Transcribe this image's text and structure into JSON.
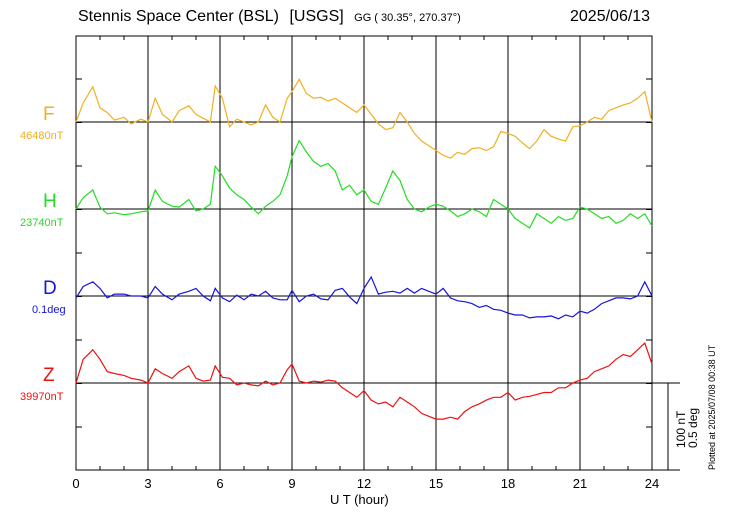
{
  "header": {
    "station": "Stennis Space Center (BSL)",
    "agency": "[USGS]",
    "coords": "GG ( 30.35°, 270.37°)",
    "date": "2025/06/13"
  },
  "scale": {
    "nt": "100 nT",
    "deg": "0.5 deg"
  },
  "plotted_note": "Plotted at 2025/07/08 00:38 UT",
  "chart_data": {
    "type": "line",
    "xlabel": "U T (hour)",
    "xticks": [
      "0",
      "3",
      "6",
      "9",
      "12",
      "15",
      "18",
      "21",
      "24"
    ],
    "xlim": [
      0,
      24
    ],
    "grid": true,
    "series": [
      {
        "name": "F",
        "baseline_label": "46480nT",
        "color": "#f0b020",
        "offset": 0,
        "x": [
          0,
          0.3,
          0.7,
          1.0,
          1.3,
          1.6,
          2.0,
          2.3,
          2.7,
          3.0,
          3.3,
          3.6,
          4.0,
          4.3,
          4.7,
          5.0,
          5.3,
          5.6,
          5.8,
          6.1,
          6.4,
          6.7,
          7.0,
          7.3,
          7.6,
          7.9,
          8.2,
          8.5,
          8.8,
          9.0,
          9.3,
          9.6,
          9.9,
          10.2,
          10.5,
          10.8,
          11.1,
          11.4,
          11.7,
          12.0,
          12.3,
          12.6,
          12.9,
          13.2,
          13.5,
          13.8,
          14.1,
          14.4,
          14.7,
          15.0,
          15.3,
          15.6,
          15.9,
          16.2,
          16.5,
          16.8,
          17.1,
          17.4,
          17.7,
          18.0,
          18.3,
          18.6,
          18.9,
          19.2,
          19.5,
          19.8,
          20.1,
          20.4,
          20.7,
          21.0,
          21.3,
          21.6,
          21.9,
          22.2,
          22.5,
          22.8,
          23.1,
          23.4,
          23.7,
          24.0
        ],
        "y": [
          0,
          20,
          37,
          15,
          10,
          2,
          5,
          -2,
          3,
          0,
          25,
          8,
          0,
          12,
          17,
          8,
          4,
          0,
          38,
          25,
          -5,
          3,
          0,
          -3,
          0,
          18,
          5,
          0,
          25,
          32,
          45,
          30,
          25,
          26,
          22,
          25,
          20,
          15,
          10,
          18,
          8,
          -2,
          -8,
          -6,
          10,
          0,
          -12,
          -20,
          -25,
          -30,
          -35,
          -38,
          -32,
          -34,
          -28,
          -27,
          -30,
          -26,
          -10,
          -12,
          -15,
          -22,
          -28,
          -20,
          -8,
          -15,
          -18,
          -20,
          -5,
          -4,
          0,
          5,
          3,
          12,
          15,
          18,
          20,
          25,
          32,
          0
        ]
      },
      {
        "name": "H",
        "baseline_label": "23740nT",
        "color": "#22dd22",
        "offset": 0,
        "x": [
          0,
          0.3,
          0.7,
          1.0,
          1.3,
          1.6,
          2.0,
          2.3,
          2.7,
          3.0,
          3.3,
          3.6,
          4.0,
          4.3,
          4.7,
          5.0,
          5.3,
          5.6,
          5.8,
          6.1,
          6.4,
          6.7,
          7.0,
          7.3,
          7.6,
          7.9,
          8.2,
          8.5,
          8.8,
          9.0,
          9.3,
          9.6,
          9.9,
          10.2,
          10.5,
          10.8,
          11.1,
          11.4,
          11.7,
          12.0,
          12.3,
          12.6,
          12.9,
          13.2,
          13.5,
          13.8,
          14.1,
          14.4,
          14.7,
          15.0,
          15.3,
          15.6,
          15.9,
          16.2,
          16.5,
          16.8,
          17.1,
          17.4,
          17.7,
          18.0,
          18.3,
          18.6,
          18.9,
          19.2,
          19.5,
          19.8,
          20.1,
          20.4,
          20.7,
          21.0,
          21.3,
          21.6,
          21.9,
          22.2,
          22.5,
          22.8,
          23.1,
          23.4,
          23.7,
          24.0
        ],
        "y": [
          0,
          12,
          20,
          2,
          -5,
          -4,
          -6,
          -5,
          -3,
          -2,
          20,
          8,
          3,
          2,
          10,
          -2,
          0,
          5,
          45,
          35,
          22,
          15,
          10,
          2,
          -5,
          3,
          8,
          15,
          35,
          55,
          72,
          60,
          50,
          45,
          48,
          40,
          20,
          25,
          15,
          20,
          8,
          5,
          22,
          40,
          30,
          10,
          0,
          -3,
          2,
          5,
          3,
          -2,
          -8,
          -5,
          0,
          -3,
          -8,
          10,
          5,
          0,
          -10,
          -15,
          -20,
          -5,
          -10,
          -15,
          -8,
          -12,
          -10,
          2,
          0,
          -5,
          -10,
          -8,
          -15,
          -12,
          -5,
          -10,
          -5,
          -18
        ]
      },
      {
        "name": "D",
        "baseline_label": "0.1deg",
        "color": "#1515dd",
        "offset": 0,
        "x": [
          0,
          0.3,
          0.7,
          1.0,
          1.3,
          1.6,
          2.0,
          2.3,
          2.7,
          3.0,
          3.3,
          3.6,
          4.0,
          4.3,
          4.7,
          5.0,
          5.3,
          5.6,
          5.8,
          6.1,
          6.4,
          6.7,
          7.0,
          7.3,
          7.6,
          7.9,
          8.2,
          8.5,
          8.8,
          9.0,
          9.3,
          9.6,
          9.9,
          10.2,
          10.5,
          10.8,
          11.1,
          11.4,
          11.7,
          12.0,
          12.3,
          12.6,
          12.9,
          13.2,
          13.5,
          13.8,
          14.1,
          14.4,
          14.7,
          15.0,
          15.3,
          15.6,
          15.9,
          16.2,
          16.5,
          16.8,
          17.1,
          17.4,
          17.7,
          18.0,
          18.3,
          18.6,
          18.9,
          19.2,
          19.5,
          19.8,
          20.1,
          20.4,
          20.7,
          21.0,
          21.3,
          21.6,
          21.9,
          22.2,
          22.5,
          22.8,
          23.1,
          23.4,
          23.7,
          24.0
        ],
        "y": [
          -2,
          10,
          15,
          8,
          -2,
          2,
          2,
          0,
          0,
          -2,
          10,
          2,
          -4,
          2,
          5,
          8,
          0,
          -5,
          8,
          -2,
          -6,
          1,
          -4,
          2,
          0,
          5,
          -2,
          -4,
          -4,
          6,
          -6,
          0,
          2,
          -3,
          -4,
          6,
          8,
          -1,
          -8,
          8,
          20,
          2,
          4,
          5,
          3,
          8,
          3,
          8,
          5,
          2,
          8,
          -2,
          -5,
          -6,
          -8,
          -12,
          -10,
          -14,
          -15,
          -18,
          -20,
          -20,
          -23,
          -22,
          -22,
          -21,
          -24,
          -20,
          -22,
          -16,
          -18,
          -14,
          -8,
          -5,
          -2,
          -2,
          -3,
          0,
          15,
          0
        ]
      },
      {
        "name": "Z",
        "baseline_label": "39970nT",
        "color": "#ee1111",
        "offset": 0,
        "x": [
          0,
          0.3,
          0.7,
          1.0,
          1.3,
          1.6,
          2.0,
          2.3,
          2.7,
          3.0,
          3.3,
          3.6,
          4.0,
          4.3,
          4.7,
          5.0,
          5.3,
          5.6,
          5.8,
          6.1,
          6.4,
          6.7,
          7.0,
          7.3,
          7.6,
          7.9,
          8.2,
          8.5,
          8.8,
          9.0,
          9.3,
          9.6,
          9.9,
          10.2,
          10.5,
          10.8,
          11.1,
          11.4,
          11.7,
          12.0,
          12.3,
          12.6,
          12.9,
          13.2,
          13.5,
          13.8,
          14.1,
          14.4,
          14.7,
          15.0,
          15.3,
          15.6,
          15.9,
          16.2,
          16.5,
          16.8,
          17.1,
          17.4,
          17.7,
          18.0,
          18.3,
          18.6,
          18.9,
          19.2,
          19.5,
          19.8,
          20.1,
          20.4,
          20.7,
          21.0,
          21.3,
          21.6,
          21.9,
          22.2,
          22.5,
          22.8,
          23.1,
          23.4,
          23.7,
          24.0
        ],
        "y": [
          0,
          25,
          35,
          25,
          12,
          10,
          8,
          5,
          3,
          0,
          15,
          10,
          5,
          12,
          18,
          5,
          2,
          3,
          18,
          6,
          5,
          -2,
          0,
          -2,
          -3,
          2,
          -2,
          0,
          14,
          20,
          2,
          0,
          2,
          1,
          3,
          2,
          -5,
          -10,
          -15,
          -8,
          -18,
          -22,
          -20,
          -25,
          -15,
          -20,
          -25,
          -32,
          -35,
          -38,
          -38,
          -36,
          -38,
          -30,
          -25,
          -22,
          -18,
          -15,
          -15,
          -10,
          -18,
          -15,
          -14,
          -12,
          -10,
          -10,
          -5,
          -5,
          0,
          3,
          5,
          12,
          15,
          18,
          25,
          30,
          28,
          35,
          42,
          20
        ]
      }
    ]
  }
}
